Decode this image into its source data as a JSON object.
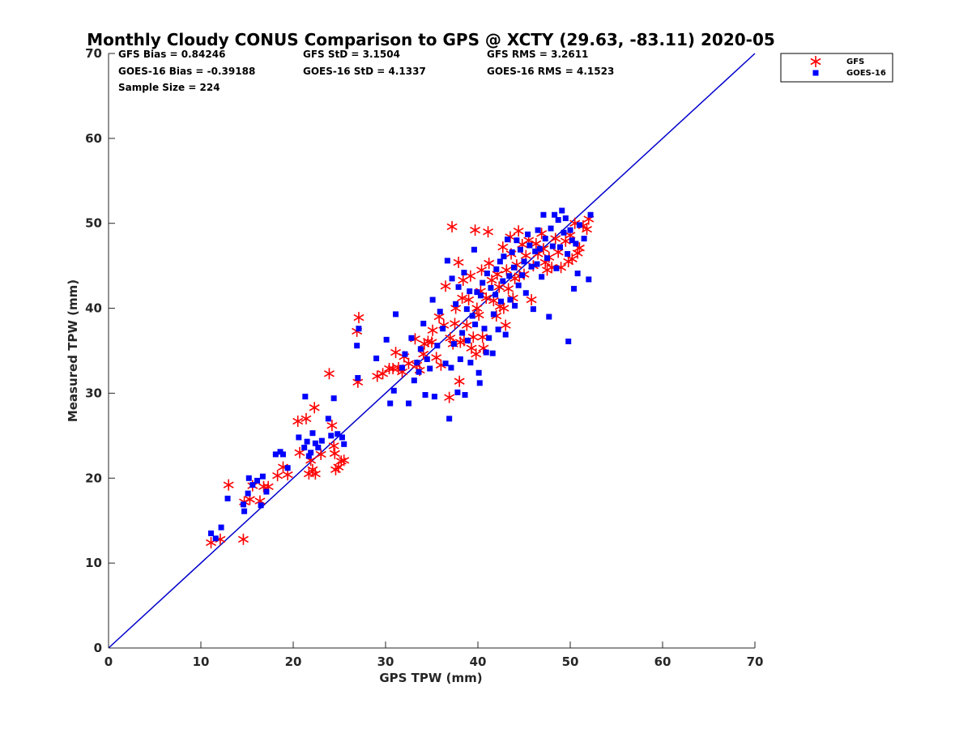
{
  "chart_data": {
    "type": "scatter",
    "title": "Monthly Cloudy CONUS Comparison to GPS @ XCTY (29.63, -83.11) 2020-05",
    "xlabel": "GPS TPW (mm)",
    "ylabel": "Measured TPW (mm)",
    "xlim": [
      0,
      70
    ],
    "ylim": [
      0,
      70
    ],
    "xticks": [
      "0",
      "10",
      "20",
      "30",
      "40",
      "50",
      "60",
      "70"
    ],
    "yticks": [
      "0",
      "10",
      "20",
      "30",
      "40",
      "50",
      "60",
      "70"
    ],
    "grid": false,
    "legend_position": "top-right (outside plot)",
    "stats": [
      {
        "text": "GFS Bias = 0.84246"
      },
      {
        "text": "GFS StD = 3.1504"
      },
      {
        "text": "GFS RMS = 3.2611"
      },
      {
        "text": "GOES-16 Bias = -0.39188"
      },
      {
        "text": "GOES-16 StD = 4.1337"
      },
      {
        "text": "GOES-16 RMS = 4.1523"
      },
      {
        "text": "Sample Size = 224"
      }
    ],
    "reference_line": {
      "x": [
        0,
        70
      ],
      "y": [
        0,
        70
      ],
      "color": "#0000cc"
    },
    "series": [
      {
        "name": "GFS",
        "marker": "asterisk",
        "color": "#ff0000",
        "points": [
          [
            11.1,
            12.4
          ],
          [
            12.1,
            12.8
          ],
          [
            13.0,
            19.2
          ],
          [
            14.6,
            12.8
          ],
          [
            14.7,
            17.2
          ],
          [
            15.3,
            17.5
          ],
          [
            15.6,
            19.1
          ],
          [
            16.4,
            17.3
          ],
          [
            16.8,
            19.0
          ],
          [
            17.3,
            19.0
          ],
          [
            18.3,
            20.3
          ],
          [
            18.9,
            21.3
          ],
          [
            19.4,
            20.4
          ],
          [
            20.5,
            26.7
          ],
          [
            20.7,
            23.0
          ],
          [
            21.4,
            27.0
          ],
          [
            21.7,
            20.5
          ],
          [
            21.9,
            22.1
          ],
          [
            22.1,
            21.0
          ],
          [
            22.3,
            28.3
          ],
          [
            22.4,
            20.5
          ],
          [
            23.0,
            22.8
          ],
          [
            23.9,
            32.3
          ],
          [
            24.2,
            26.2
          ],
          [
            24.4,
            23.8
          ],
          [
            24.5,
            22.9
          ],
          [
            24.6,
            21.0
          ],
          [
            24.9,
            21.3
          ],
          [
            25.2,
            22.0
          ],
          [
            25.5,
            22.1
          ],
          [
            26.9,
            37.3
          ],
          [
            27.0,
            31.3
          ],
          [
            27.1,
            38.9
          ],
          [
            29.1,
            32.0
          ],
          [
            29.7,
            32.3
          ],
          [
            30.4,
            32.9
          ],
          [
            30.8,
            32.9
          ],
          [
            31.1,
            34.8
          ],
          [
            31.4,
            33.0
          ],
          [
            31.8,
            32.5
          ],
          [
            32.0,
            34.3
          ],
          [
            32.5,
            33.5
          ],
          [
            33.2,
            36.4
          ],
          [
            33.4,
            33.3
          ],
          [
            33.7,
            32.7
          ],
          [
            34.1,
            34.6
          ],
          [
            34.2,
            35.8
          ],
          [
            34.6,
            36.1
          ],
          [
            35.0,
            36.0
          ],
          [
            35.1,
            37.4
          ],
          [
            35.5,
            34.2
          ],
          [
            35.8,
            39.0
          ],
          [
            36.0,
            33.3
          ],
          [
            36.3,
            38.0
          ],
          [
            36.5,
            42.6
          ],
          [
            36.9,
            29.5
          ],
          [
            37.0,
            36.5
          ],
          [
            37.2,
            49.6
          ],
          [
            37.3,
            35.8
          ],
          [
            37.5,
            38.2
          ],
          [
            37.6,
            40.0
          ],
          [
            37.9,
            45.4
          ],
          [
            38.0,
            31.4
          ],
          [
            38.1,
            36.0
          ],
          [
            38.3,
            41.2
          ],
          [
            38.4,
            43.3
          ],
          [
            38.5,
            36.2
          ],
          [
            38.8,
            38.0
          ],
          [
            39.0,
            41.0
          ],
          [
            39.2,
            43.8
          ],
          [
            39.3,
            35.3
          ],
          [
            39.5,
            36.6
          ],
          [
            39.7,
            49.2
          ],
          [
            39.8,
            34.6
          ],
          [
            39.9,
            40.0
          ],
          [
            40.1,
            39.2
          ],
          [
            40.3,
            42.0
          ],
          [
            40.4,
            44.5
          ],
          [
            40.5,
            36.6
          ],
          [
            40.6,
            35.3
          ],
          [
            40.9,
            41.2
          ],
          [
            41.1,
            49.0
          ],
          [
            41.2,
            45.3
          ],
          [
            41.5,
            43.3
          ],
          [
            41.7,
            40.9
          ],
          [
            42.0,
            39.1
          ],
          [
            42.1,
            44.0
          ],
          [
            42.3,
            42.5
          ],
          [
            42.4,
            40.2
          ],
          [
            42.7,
            47.2
          ],
          [
            42.8,
            40.0
          ],
          [
            43.0,
            38.0
          ],
          [
            43.1,
            44.5
          ],
          [
            43.3,
            42.3
          ],
          [
            43.5,
            48.4
          ],
          [
            43.6,
            46.4
          ],
          [
            43.8,
            41.2
          ],
          [
            44.0,
            43.5
          ],
          [
            44.2,
            45.1
          ],
          [
            44.4,
            49.1
          ],
          [
            44.5,
            43.8
          ],
          [
            44.8,
            47.5
          ],
          [
            45.0,
            44.0
          ],
          [
            45.2,
            46.2
          ],
          [
            45.5,
            48.0
          ],
          [
            45.8,
            41.0
          ],
          [
            46.0,
            45.0
          ],
          [
            46.3,
            47.6
          ],
          [
            46.5,
            46.4
          ],
          [
            46.9,
            48.8
          ],
          [
            47.1,
            47.0
          ],
          [
            47.3,
            45.4
          ],
          [
            47.5,
            44.5
          ],
          [
            47.7,
            46.0
          ],
          [
            48.0,
            44.8
          ],
          [
            48.4,
            48.2
          ],
          [
            48.7,
            46.6
          ],
          [
            49.0,
            44.8
          ],
          [
            49.5,
            47.9
          ],
          [
            49.8,
            45.5
          ],
          [
            50.0,
            48.6
          ],
          [
            50.2,
            45.8
          ],
          [
            50.5,
            50.0
          ],
          [
            50.8,
            46.5
          ],
          [
            51.0,
            47.1
          ],
          [
            51.4,
            49.7
          ],
          [
            51.8,
            49.3
          ],
          [
            52.0,
            50.5
          ]
        ]
      },
      {
        "name": "GOES-16",
        "marker": "square",
        "color": "#0000ff",
        "points": [
          [
            11.1,
            13.5
          ],
          [
            11.6,
            12.9
          ],
          [
            12.2,
            14.2
          ],
          [
            12.9,
            17.6
          ],
          [
            14.6,
            16.9
          ],
          [
            14.7,
            16.1
          ],
          [
            15.1,
            18.2
          ],
          [
            15.2,
            20.0
          ],
          [
            15.6,
            19.2
          ],
          [
            16.1,
            19.7
          ],
          [
            16.5,
            16.8
          ],
          [
            16.7,
            20.2
          ],
          [
            17.1,
            18.4
          ],
          [
            18.1,
            22.8
          ],
          [
            18.6,
            23.1
          ],
          [
            18.9,
            22.8
          ],
          [
            19.4,
            21.2
          ],
          [
            20.6,
            24.8
          ],
          [
            21.2,
            23.6
          ],
          [
            21.3,
            29.6
          ],
          [
            21.5,
            24.3
          ],
          [
            21.7,
            22.6
          ],
          [
            21.9,
            23.0
          ],
          [
            22.1,
            25.3
          ],
          [
            22.4,
            24.1
          ],
          [
            22.7,
            23.6
          ],
          [
            23.1,
            24.4
          ],
          [
            23.8,
            27.0
          ],
          [
            24.1,
            25.0
          ],
          [
            24.4,
            29.4
          ],
          [
            24.8,
            25.2
          ],
          [
            25.3,
            24.8
          ],
          [
            25.5,
            24.0
          ],
          [
            26.9,
            35.6
          ],
          [
            27.0,
            31.8
          ],
          [
            27.1,
            37.6
          ],
          [
            29.0,
            34.1
          ],
          [
            30.1,
            36.3
          ],
          [
            30.5,
            28.8
          ],
          [
            30.9,
            30.3
          ],
          [
            31.1,
            39.3
          ],
          [
            31.8,
            33.0
          ],
          [
            32.1,
            34.6
          ],
          [
            32.5,
            28.8
          ],
          [
            32.8,
            36.5
          ],
          [
            33.1,
            31.5
          ],
          [
            33.4,
            33.6
          ],
          [
            33.6,
            32.5
          ],
          [
            33.8,
            35.2
          ],
          [
            34.1,
            38.2
          ],
          [
            34.3,
            29.8
          ],
          [
            34.5,
            34.0
          ],
          [
            34.8,
            32.9
          ],
          [
            35.1,
            41.0
          ],
          [
            35.3,
            29.6
          ],
          [
            35.6,
            35.6
          ],
          [
            35.9,
            39.6
          ],
          [
            36.2,
            37.6
          ],
          [
            36.5,
            33.5
          ],
          [
            36.7,
            45.6
          ],
          [
            36.9,
            27.0
          ],
          [
            37.1,
            33.0
          ],
          [
            37.2,
            43.5
          ],
          [
            37.4,
            35.8
          ],
          [
            37.6,
            40.5
          ],
          [
            37.8,
            30.1
          ],
          [
            37.9,
            42.5
          ],
          [
            38.1,
            34.0
          ],
          [
            38.3,
            37.1
          ],
          [
            38.5,
            44.2
          ],
          [
            38.6,
            29.8
          ],
          [
            38.8,
            39.9
          ],
          [
            38.9,
            36.2
          ],
          [
            39.1,
            42.0
          ],
          [
            39.2,
            33.6
          ],
          [
            39.4,
            39.1
          ],
          [
            39.6,
            46.9
          ],
          [
            39.7,
            38.1
          ],
          [
            39.9,
            41.9
          ],
          [
            40.1,
            32.4
          ],
          [
            40.2,
            31.2
          ],
          [
            40.3,
            41.5
          ],
          [
            40.5,
            43.0
          ],
          [
            40.7,
            37.6
          ],
          [
            40.9,
            34.8
          ],
          [
            41.0,
            44.1
          ],
          [
            41.2,
            36.5
          ],
          [
            41.4,
            42.4
          ],
          [
            41.6,
            34.7
          ],
          [
            41.7,
            39.3
          ],
          [
            41.9,
            41.6
          ],
          [
            42.0,
            44.6
          ],
          [
            42.2,
            37.5
          ],
          [
            42.4,
            45.5
          ],
          [
            42.5,
            40.8
          ],
          [
            42.7,
            43.2
          ],
          [
            42.8,
            46.1
          ],
          [
            43.0,
            36.9
          ],
          [
            43.2,
            48.1
          ],
          [
            43.4,
            43.8
          ],
          [
            43.5,
            41.0
          ],
          [
            43.7,
            46.6
          ],
          [
            43.9,
            44.8
          ],
          [
            44.0,
            40.3
          ],
          [
            44.2,
            48.0
          ],
          [
            44.4,
            42.7
          ],
          [
            44.6,
            46.9
          ],
          [
            44.8,
            43.9
          ],
          [
            45.0,
            45.5
          ],
          [
            45.2,
            41.8
          ],
          [
            45.4,
            48.7
          ],
          [
            45.6,
            47.4
          ],
          [
            45.8,
            44.9
          ],
          [
            46.0,
            39.9
          ],
          [
            46.2,
            46.7
          ],
          [
            46.4,
            45.2
          ],
          [
            46.5,
            49.2
          ],
          [
            46.7,
            47.0
          ],
          [
            46.9,
            43.7
          ],
          [
            47.1,
            51.0
          ],
          [
            47.3,
            48.2
          ],
          [
            47.5,
            45.9
          ],
          [
            47.7,
            39.0
          ],
          [
            47.9,
            49.4
          ],
          [
            48.1,
            47.3
          ],
          [
            48.3,
            51.0
          ],
          [
            48.5,
            44.7
          ],
          [
            48.7,
            50.4
          ],
          [
            48.9,
            47.2
          ],
          [
            49.1,
            51.5
          ],
          [
            49.3,
            48.9
          ],
          [
            49.5,
            50.6
          ],
          [
            49.7,
            46.4
          ],
          [
            49.8,
            36.1
          ],
          [
            50.0,
            49.2
          ],
          [
            50.2,
            48.0
          ],
          [
            50.4,
            42.3
          ],
          [
            50.6,
            47.6
          ],
          [
            50.8,
            44.1
          ],
          [
            51.0,
            49.8
          ],
          [
            51.5,
            48.2
          ],
          [
            52.0,
            43.4
          ],
          [
            52.2,
            51.0
          ]
        ]
      }
    ]
  }
}
